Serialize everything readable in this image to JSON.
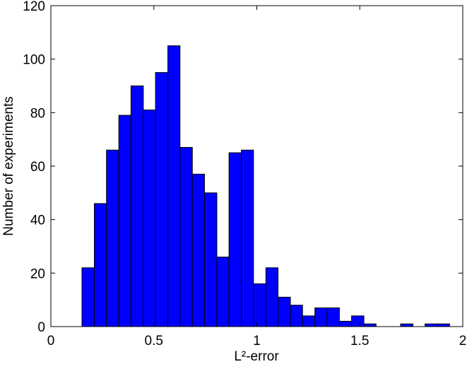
{
  "chart_data": {
    "type": "histogram",
    "xlabel": "L²-error",
    "ylabel": "Number of experiments",
    "bins": [
      0.151,
      0.211,
      0.27,
      0.33,
      0.389,
      0.449,
      0.508,
      0.568,
      0.627,
      0.687,
      0.746,
      0.806,
      0.865,
      0.925,
      0.984,
      1.044,
      1.103,
      1.163,
      1.222,
      1.282,
      1.341,
      1.401,
      1.46,
      1.52,
      1.579,
      1.639,
      1.698,
      1.758,
      1.817,
      1.877,
      1.936
    ],
    "values": [
      22,
      46,
      66,
      79,
      90,
      81,
      95,
      105,
      67,
      57,
      50,
      26,
      65,
      66,
      16,
      22,
      11,
      8,
      4,
      7,
      7,
      2,
      4,
      1,
      0,
      0,
      1,
      0,
      1,
      1
    ],
    "color": "#0000ff",
    "xlim": [
      0,
      2
    ],
    "xticks": [
      0,
      0.5,
      1,
      1.5,
      2
    ],
    "ylim": [
      0,
      120
    ],
    "yticks": [
      0,
      20,
      40,
      60,
      80,
      100,
      120
    ]
  }
}
